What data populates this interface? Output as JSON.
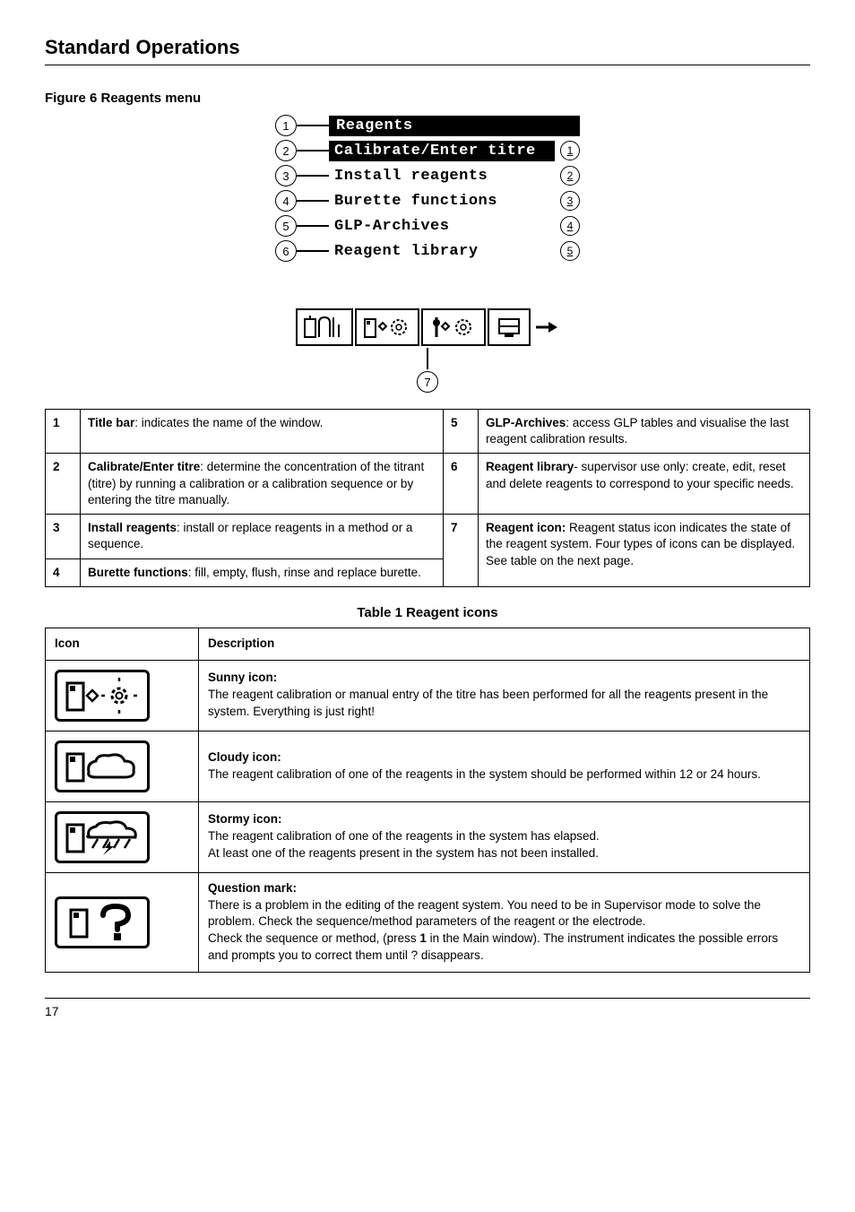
{
  "header": {
    "section_title": "Standard Operations"
  },
  "figure": {
    "caption": "Figure 6 Reagents menu",
    "menu_title": "Reagents",
    "items": [
      {
        "label": "Calibrate/Enter titre",
        "rnum": "1"
      },
      {
        "label": "Install reagents",
        "rnum": "2"
      },
      {
        "label": "Burette functions",
        "rnum": "3"
      },
      {
        "label": "GLP-Archives",
        "rnum": "4"
      },
      {
        "label": "Reagent library",
        "rnum": "5"
      }
    ],
    "callout_nums": [
      "1",
      "2",
      "3",
      "4",
      "5",
      "6",
      "7"
    ]
  },
  "legend": [
    {
      "n": "1",
      "html": "<b>Title bar</b>: indicates the name of the window."
    },
    {
      "n": "2",
      "html": "<b>Calibrate/Enter titre</b>: determine the concentration of the titrant (titre) by running a calibration or a calibration sequence or by entering the titre manually."
    },
    {
      "n": "3",
      "html": "<b>Install reagents</b>: install or replace reagents in a method or a sequence."
    },
    {
      "n": "4",
      "html": "<b>Burette functions</b>: fill, empty, flush, rinse and replace burette."
    },
    {
      "n": "5",
      "html": "<b>GLP-Archives</b>: access GLP tables and visualise the last reagent calibration results."
    },
    {
      "n": "6",
      "html": "<b>Reagent library</b>- supervisor use only: create, edit, reset and delete reagents to correspond to your specific needs."
    },
    {
      "n": "7",
      "html": "<b>Reagent icon:</b> Reagent status icon indicates the state of the reagent system. Four types of icons can be displayed. See table on the next page."
    }
  ],
  "icon_table": {
    "title": "Table 1 Reagent icons",
    "headers": {
      "icon": "Icon",
      "desc": "Description"
    },
    "rows": [
      {
        "kind": "sunny",
        "title": "Sunny icon:",
        "body": "The reagent calibration or manual entry of the titre has been performed for all the reagents present in the system. Everything is just right!"
      },
      {
        "kind": "cloudy",
        "title": "Cloudy icon:",
        "body": "The reagent calibration of one of the reagents in the system should be performed within 12 or 24 hours."
      },
      {
        "kind": "stormy",
        "title": "Stormy icon:",
        "body": "The reagent calibration of one of the reagents in the system has elapsed.<br>At least one of the reagents present in the system has not been installed."
      },
      {
        "kind": "question",
        "title": "Question mark:",
        "body": "There is a problem in the editing of the reagent system. You need to be in Supervisor mode to solve the problem. Check the sequence/method parameters of the reagent or the electrode.<br>Check the sequence or method, (press <b>1</b> in the Main window). The instrument indicates the possible errors and prompts you to correct them until ? disappears."
      }
    ]
  },
  "footer": {
    "page": "17"
  },
  "colors": {
    "fg": "#000000",
    "bg": "#ffffff"
  }
}
